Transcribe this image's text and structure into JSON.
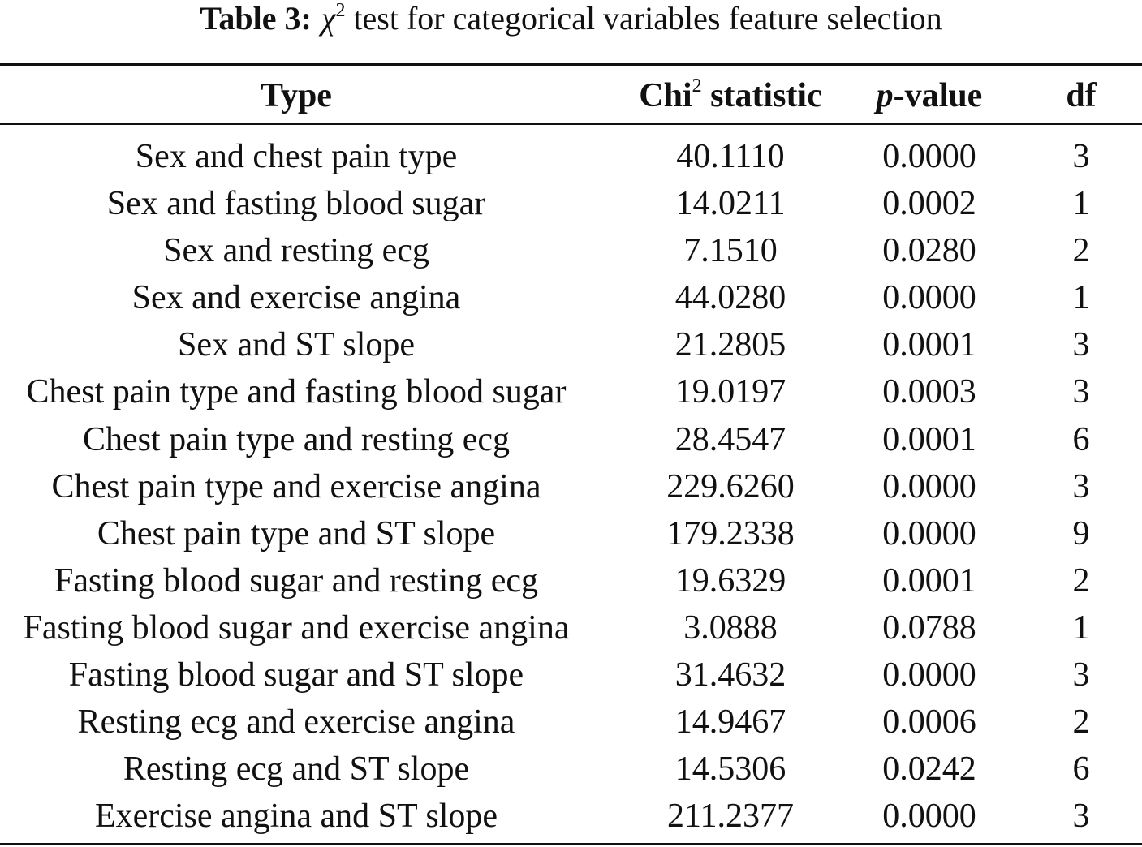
{
  "caption": {
    "label": "Table 3:",
    "chi_symbol": "χ",
    "chi_superscript": "2",
    "text": "test for categorical variables feature selection"
  },
  "table": {
    "headers": {
      "type": "Type",
      "chi_prefix": "Chi",
      "chi_superscript": "2",
      "chi_suffix": "statistic",
      "p_italic": "p",
      "p_suffix": "-value",
      "df": "df"
    },
    "rows": [
      {
        "type": "Sex and chest pain type",
        "chi2": "40.1110",
        "p": "0.0000",
        "df": "3"
      },
      {
        "type": "Sex and fasting blood sugar",
        "chi2": "14.0211",
        "p": "0.0002",
        "df": "1"
      },
      {
        "type": "Sex and resting ecg",
        "chi2": "7.1510",
        "p": "0.0280",
        "df": "2"
      },
      {
        "type": "Sex and exercise angina",
        "chi2": "44.0280",
        "p": "0.0000",
        "df": "1"
      },
      {
        "type": "Sex and ST slope",
        "chi2": "21.2805",
        "p": "0.0001",
        "df": "3"
      },
      {
        "type": "Chest pain type and fasting blood sugar",
        "chi2": "19.0197",
        "p": "0.0003",
        "df": "3"
      },
      {
        "type": "Chest pain type and resting ecg",
        "chi2": "28.4547",
        "p": "0.0001",
        "df": "6"
      },
      {
        "type": "Chest pain type and exercise angina",
        "chi2": "229.6260",
        "p": "0.0000",
        "df": "3"
      },
      {
        "type": "Chest pain type and ST slope",
        "chi2": "179.2338",
        "p": "0.0000",
        "df": "9"
      },
      {
        "type": "Fasting blood sugar and resting ecg",
        "chi2": "19.6329",
        "p": "0.0001",
        "df": "2"
      },
      {
        "type": "Fasting blood sugar and exercise angina",
        "chi2": "3.0888",
        "p": "0.0788",
        "df": "1"
      },
      {
        "type": "Fasting blood sugar and ST slope",
        "chi2": "31.4632",
        "p": "0.0000",
        "df": "3"
      },
      {
        "type": "Resting ecg and exercise angina",
        "chi2": "14.9467",
        "p": "0.0006",
        "df": "2"
      },
      {
        "type": "Resting ecg and ST slope",
        "chi2": "14.5306",
        "p": "0.0242",
        "df": "6"
      },
      {
        "type": "Exercise angina and ST slope",
        "chi2": "211.2377",
        "p": "0.0000",
        "df": "3"
      }
    ]
  }
}
